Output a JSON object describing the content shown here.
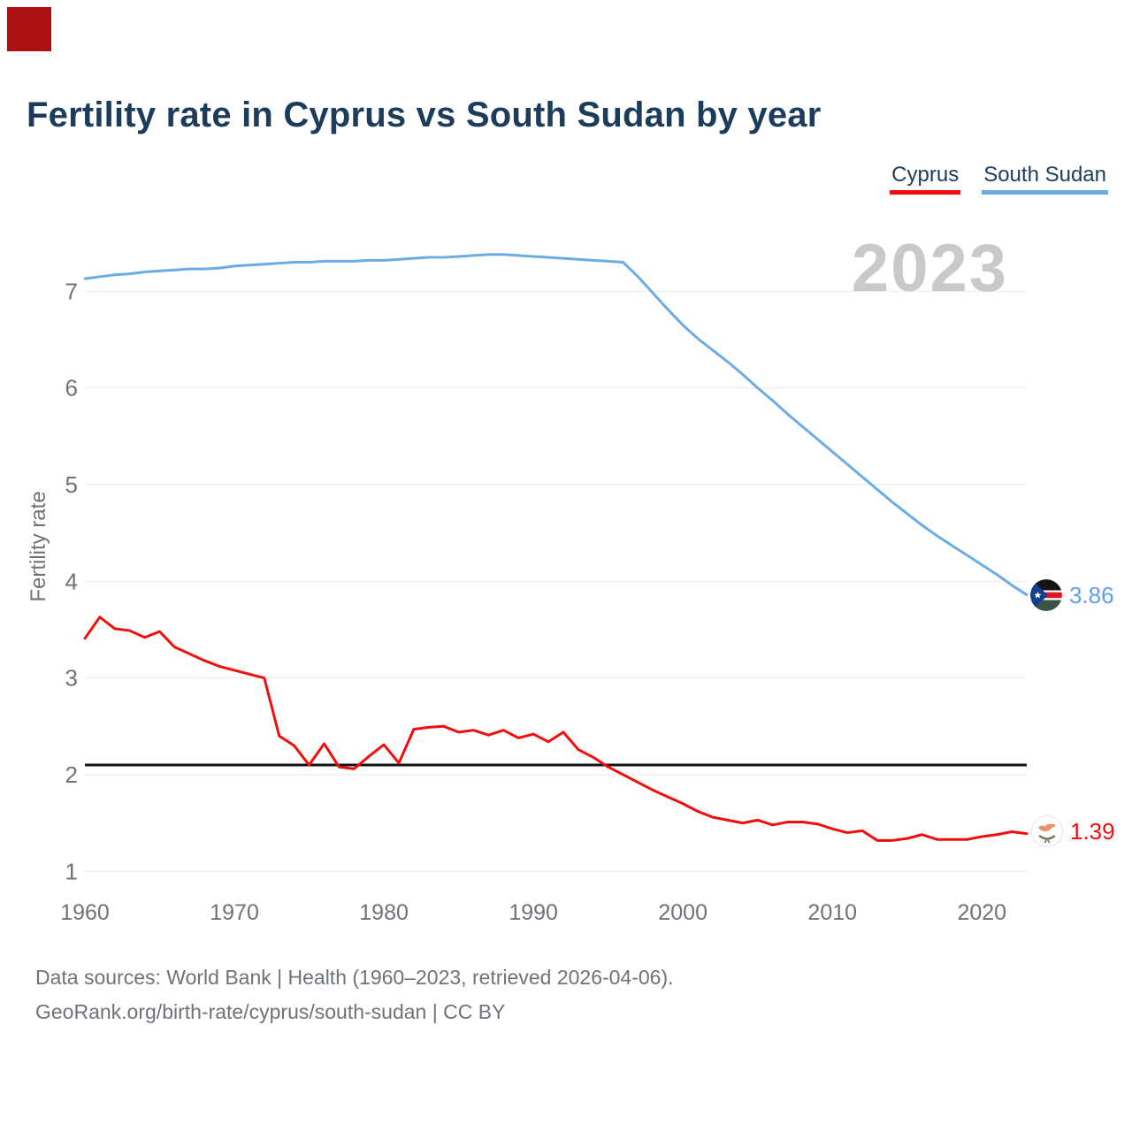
{
  "corner_badge": {
    "color": "#ad1111"
  },
  "header": {
    "title": "Fertility rate in Cyprus vs South Sudan by year"
  },
  "legend": {
    "items": [
      {
        "label": "Cyprus",
        "color": "#f20d0d"
      },
      {
        "label": "South Sudan",
        "color": "#6cace6"
      }
    ]
  },
  "watermark": "2023",
  "end_labels": {
    "south_sudan": {
      "value": "3.86",
      "color": "#5ba0e8",
      "flag": "south-sudan-flag"
    },
    "cyprus": {
      "value": "1.39",
      "color": "#f20d0d",
      "flag": "cyprus-flag"
    }
  },
  "footer": {
    "line1": "Data sources: World Bank | Health (1960–2023, retrieved 2026-04-06).",
    "line2": "GeoRank.org/birth-rate/cyprus/south-sudan | CC BY"
  },
  "chart_data": {
    "type": "line",
    "title": "Fertility rate in Cyprus vs South Sudan by year",
    "xlabel": "",
    "ylabel": "Fertility rate",
    "xlim": [
      1960,
      2023
    ],
    "ylim": [
      1,
      7.5
    ],
    "x_ticks": [
      1960,
      1970,
      1980,
      1990,
      2000,
      2010,
      2020
    ],
    "y_ticks": [
      1,
      2,
      3,
      4,
      5,
      6,
      7
    ],
    "grid": "horizontal",
    "legend_position": "top-right",
    "reference_line": {
      "value": 2.1,
      "color": "#111111"
    },
    "x": [
      1960,
      1961,
      1962,
      1963,
      1964,
      1965,
      1966,
      1967,
      1968,
      1969,
      1970,
      1971,
      1972,
      1973,
      1974,
      1975,
      1976,
      1977,
      1978,
      1979,
      1980,
      1981,
      1982,
      1983,
      1984,
      1985,
      1986,
      1987,
      1988,
      1989,
      1990,
      1991,
      1992,
      1993,
      1994,
      1995,
      1996,
      1997,
      1998,
      1999,
      2000,
      2001,
      2002,
      2003,
      2004,
      2005,
      2006,
      2007,
      2008,
      2009,
      2010,
      2011,
      2012,
      2013,
      2014,
      2015,
      2016,
      2017,
      2018,
      2019,
      2020,
      2021,
      2022,
      2023
    ],
    "series": [
      {
        "name": "South Sudan",
        "color": "#6cace6",
        "end_value": 3.86,
        "values": [
          7.13,
          7.15,
          7.17,
          7.18,
          7.2,
          7.21,
          7.22,
          7.23,
          7.23,
          7.24,
          7.26,
          7.27,
          7.28,
          7.29,
          7.3,
          7.3,
          7.31,
          7.31,
          7.31,
          7.32,
          7.32,
          7.33,
          7.34,
          7.35,
          7.35,
          7.36,
          7.37,
          7.38,
          7.38,
          7.37,
          7.36,
          7.35,
          7.34,
          7.33,
          7.32,
          7.31,
          7.3,
          7.15,
          6.98,
          6.81,
          6.65,
          6.51,
          6.39,
          6.27,
          6.14,
          6.0,
          5.87,
          5.73,
          5.6,
          5.47,
          5.34,
          5.21,
          5.08,
          4.95,
          4.82,
          4.7,
          4.58,
          4.47,
          4.37,
          4.27,
          4.17,
          4.07,
          3.96,
          3.86
        ]
      },
      {
        "name": "Cyprus",
        "color": "#f20d0d",
        "end_value": 1.39,
        "values": [
          3.41,
          3.63,
          3.51,
          3.49,
          3.42,
          3.48,
          3.32,
          3.25,
          3.18,
          3.12,
          3.08,
          3.04,
          3.0,
          2.4,
          2.3,
          2.1,
          2.32,
          2.08,
          2.06,
          2.19,
          2.31,
          2.12,
          2.47,
          2.49,
          2.5,
          2.44,
          2.46,
          2.41,
          2.46,
          2.38,
          2.42,
          2.34,
          2.44,
          2.26,
          2.18,
          2.08,
          2.0,
          1.92,
          1.84,
          1.77,
          1.7,
          1.62,
          1.56,
          1.53,
          1.5,
          1.53,
          1.48,
          1.51,
          1.51,
          1.49,
          1.44,
          1.4,
          1.42,
          1.32,
          1.32,
          1.34,
          1.38,
          1.33,
          1.33,
          1.33,
          1.36,
          1.38,
          1.41,
          1.39
        ]
      }
    ]
  }
}
